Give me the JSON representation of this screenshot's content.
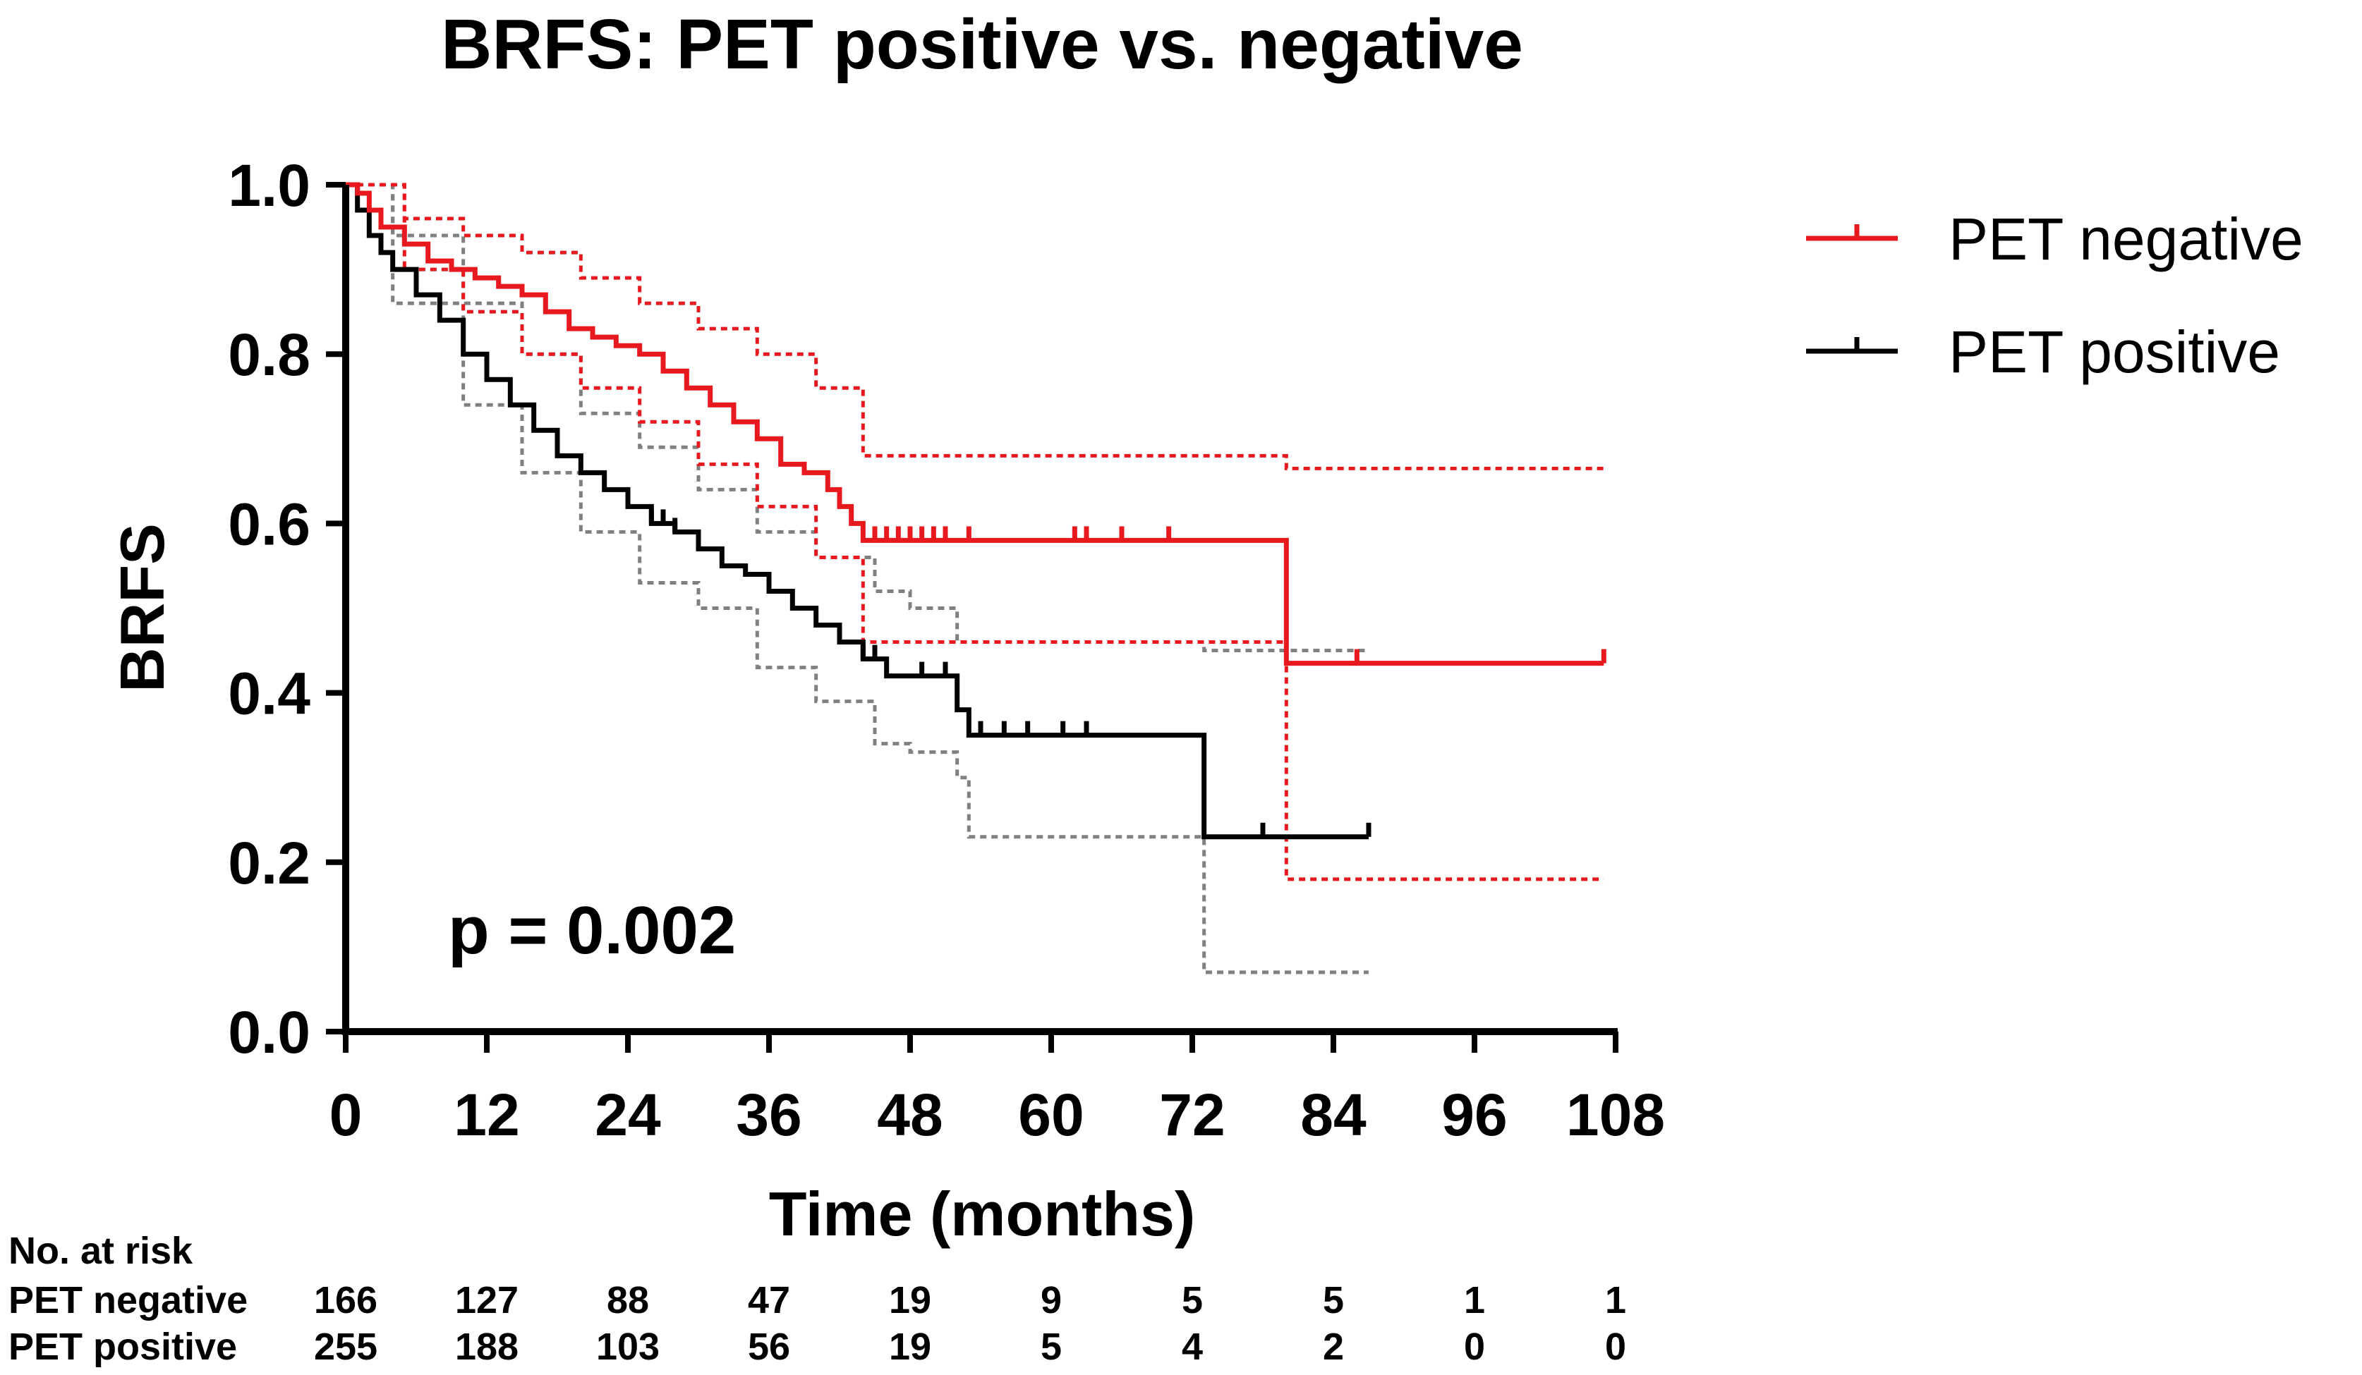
{
  "chart_data": {
    "type": "line",
    "subtype": "kaplan-meier",
    "title": "BRFS: PET positive vs. negative",
    "xlabel": "Time (months)",
    "ylabel": "BRFS",
    "xlim": [
      0,
      108
    ],
    "ylim": [
      0.0,
      1.0
    ],
    "x_ticks": [
      0,
      12,
      24,
      36,
      48,
      60,
      72,
      84,
      96,
      108
    ],
    "x_tick_labels": [
      "0",
      "12",
      "24",
      "36",
      "48",
      "60",
      "72",
      "84",
      "96",
      "108"
    ],
    "y_ticks": [
      0.0,
      0.2,
      0.4,
      0.6,
      0.8,
      1.0
    ],
    "y_tick_labels": [
      "0.0",
      "0.2",
      "0.4",
      "0.6",
      "0.8",
      "1.0"
    ],
    "legend_position": "top-right",
    "annotation": "p = 0.002",
    "colors": {
      "negative": "#e8191e",
      "positive": "#000000",
      "positive_ci": "#808080"
    },
    "series": [
      {
        "name": "PET negative",
        "color": "#e8191e",
        "x": [
          0,
          1,
          2,
          3,
          5,
          7,
          9,
          11,
          13,
          15,
          17,
          19,
          21,
          23,
          25,
          27,
          29,
          31,
          33,
          35,
          37,
          39,
          41,
          42,
          43,
          44,
          80,
          107
        ],
        "y": [
          1.0,
          0.99,
          0.97,
          0.95,
          0.93,
          0.91,
          0.9,
          0.89,
          0.88,
          0.87,
          0.85,
          0.83,
          0.82,
          0.81,
          0.8,
          0.78,
          0.76,
          0.74,
          0.72,
          0.7,
          0.67,
          0.66,
          0.64,
          0.62,
          0.6,
          0.58,
          0.435,
          0.435
        ],
        "censor_x": [
          45,
          46,
          47,
          48,
          49,
          50,
          51,
          53,
          62,
          63,
          66,
          70,
          86,
          107
        ],
        "ci_upper_x": [
          0,
          5,
          10,
          15,
          20,
          25,
          30,
          35,
          40,
          44,
          80,
          107
        ],
        "ci_upper_y": [
          1.0,
          0.96,
          0.94,
          0.92,
          0.89,
          0.86,
          0.83,
          0.8,
          0.76,
          0.68,
          0.665,
          0.665
        ],
        "ci_lower_x": [
          0,
          5,
          10,
          15,
          20,
          25,
          30,
          35,
          40,
          44,
          80,
          107
        ],
        "ci_lower_y": [
          1.0,
          0.9,
          0.85,
          0.8,
          0.76,
          0.72,
          0.67,
          0.62,
          0.56,
          0.46,
          0.18,
          0.18
        ]
      },
      {
        "name": "PET positive",
        "color": "#000000",
        "x": [
          0,
          1,
          2,
          3,
          4,
          6,
          8,
          10,
          12,
          14,
          16,
          18,
          20,
          22,
          24,
          26,
          28,
          30,
          32,
          34,
          36,
          38,
          40,
          42,
          44,
          46,
          48,
          52,
          53,
          73,
          87
        ],
        "y": [
          1.0,
          0.97,
          0.94,
          0.92,
          0.9,
          0.87,
          0.84,
          0.8,
          0.77,
          0.74,
          0.71,
          0.68,
          0.66,
          0.64,
          0.62,
          0.6,
          0.59,
          0.57,
          0.55,
          0.54,
          0.52,
          0.5,
          0.48,
          0.46,
          0.44,
          0.42,
          0.42,
          0.38,
          0.35,
          0.23,
          0.23
        ],
        "censor_x": [
          26,
          27,
          28,
          30,
          42,
          44,
          45,
          49,
          51,
          54,
          56,
          58,
          61,
          63,
          78,
          87
        ],
        "ci_upper_x": [
          0,
          4,
          10,
          15,
          20,
          25,
          30,
          35,
          40,
          45,
          48,
          52,
          53,
          73,
          87
        ],
        "ci_upper_y": [
          1.0,
          0.94,
          0.86,
          0.8,
          0.73,
          0.69,
          0.64,
          0.59,
          0.56,
          0.52,
          0.5,
          0.46,
          0.46,
          0.45,
          0.45
        ],
        "ci_lower_x": [
          0,
          4,
          10,
          15,
          20,
          25,
          30,
          35,
          40,
          45,
          48,
          52,
          53,
          73,
          87
        ],
        "ci_lower_y": [
          1.0,
          0.86,
          0.74,
          0.66,
          0.59,
          0.53,
          0.5,
          0.43,
          0.39,
          0.34,
          0.33,
          0.3,
          0.23,
          0.07,
          0.07
        ]
      }
    ],
    "risk_table": {
      "header": "No. at risk",
      "rows": [
        {
          "label": "PET negative",
          "values": [
            "166",
            "127",
            "88",
            "47",
            "19",
            "9",
            "5",
            "5",
            "1",
            "1"
          ]
        },
        {
          "label": "PET positive",
          "values": [
            "255",
            "188",
            "103",
            "56",
            "19",
            "5",
            "4",
            "2",
            "0",
            "0"
          ]
        }
      ]
    }
  }
}
